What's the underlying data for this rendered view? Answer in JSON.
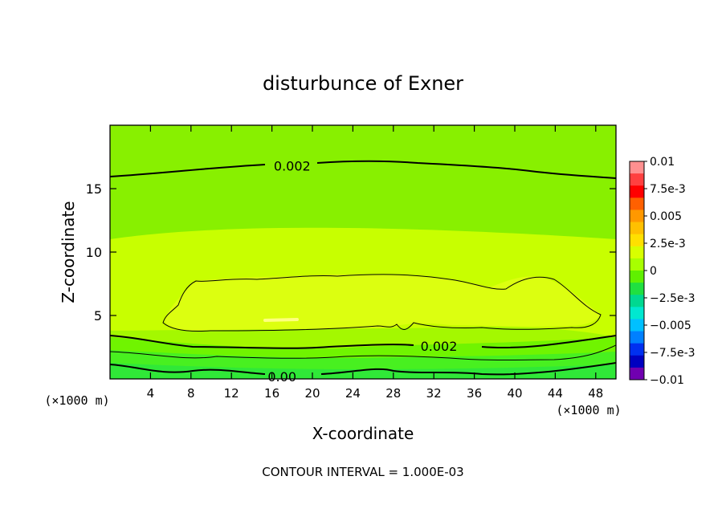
{
  "chart_data": {
    "type": "heatmap",
    "title": "disturbunce of Exner",
    "xlabel": "X-coordinate",
    "ylabel": "Z-coordinate",
    "x_unit": "(×1000 m)",
    "y_unit": "(×1000 m)",
    "xlim": [
      0,
      50
    ],
    "ylim": [
      0,
      20
    ],
    "x_ticks": [
      4,
      8,
      12,
      16,
      20,
      24,
      28,
      32,
      36,
      40,
      44,
      48
    ],
    "y_ticks": [
      5,
      10,
      15
    ],
    "footer": "CONTOUR INTERVAL = 1.000E-03",
    "contour_labels": [
      {
        "text": "0.002",
        "x": 18,
        "z": 16.8
      },
      {
        "text": "0.002",
        "x": 32.5,
        "z": 2.6
      },
      {
        "text": "0.00",
        "x": 17,
        "z": 0.2
      }
    ],
    "colorbar": {
      "min": -0.01,
      "max": 0.01,
      "tick_labels": [
        "0.01",
        "7.5e-3",
        "0.005",
        "2.5e-3",
        "0",
        "−2.5e-3",
        "−0.005",
        "−7.5e-3",
        "−0.01"
      ],
      "colors": [
        "#ff9090",
        "#ff4040",
        "#ff0000",
        "#ff6000",
        "#ff9800",
        "#ffc000",
        "#ffe000",
        "#d8ff00",
        "#a8ff00",
        "#60f000",
        "#20e040",
        "#00d890",
        "#00e8d0",
        "#00c0ff",
        "#0080ff",
        "#0030f0",
        "#0000c0",
        "#7000b0"
      ]
    },
    "field_bands": [
      {
        "z_from": 0.0,
        "z_to": 1.2,
        "color": "#30e838"
      },
      {
        "z_from": 1.2,
        "z_to": 2.4,
        "color": "#48f020"
      },
      {
        "z_from": 2.4,
        "z_to": 3.6,
        "color": "#70f400"
      },
      {
        "z_from": 3.6,
        "z_to": 10.9,
        "color": "#c8ff00"
      },
      {
        "z_from": 10.9,
        "z_to": 16.0,
        "color": "#a4f800"
      },
      {
        "z_from": 16.0,
        "z_to": 20.0,
        "color": "#88f000"
      }
    ]
  }
}
